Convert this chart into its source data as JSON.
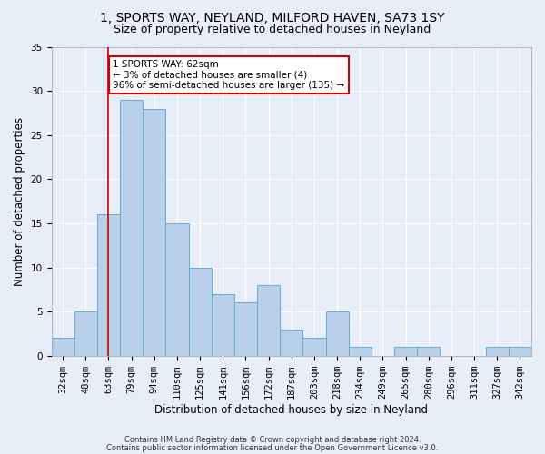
{
  "title_line1": "1, SPORTS WAY, NEYLAND, MILFORD HAVEN, SA73 1SY",
  "title_line2": "Size of property relative to detached houses in Neyland",
  "xlabel": "Distribution of detached houses by size in Neyland",
  "ylabel": "Number of detached properties",
  "categories": [
    "32sqm",
    "48sqm",
    "63sqm",
    "79sqm",
    "94sqm",
    "110sqm",
    "125sqm",
    "141sqm",
    "156sqm",
    "172sqm",
    "187sqm",
    "203sqm",
    "218sqm",
    "234sqm",
    "249sqm",
    "265sqm",
    "280sqm",
    "296sqm",
    "311sqm",
    "327sqm",
    "342sqm"
  ],
  "values": [
    2,
    5,
    16,
    29,
    28,
    15,
    10,
    7,
    6,
    8,
    3,
    2,
    5,
    1,
    0,
    1,
    1,
    0,
    0,
    1,
    1
  ],
  "bar_color": "#b8d0ea",
  "bar_edge_color": "#6aaad4",
  "red_line_index": 2,
  "annotation_text": "1 SPORTS WAY: 62sqm\n← 3% of detached houses are smaller (4)\n96% of semi-detached houses are larger (135) →",
  "annotation_box_color": "#ffffff",
  "annotation_box_edge_color": "#cc0000",
  "red_line_color": "#cc0000",
  "background_color": "#e8eef8",
  "grid_color": "#ffffff",
  "footer_line1": "Contains HM Land Registry data © Crown copyright and database right 2024.",
  "footer_line2": "Contains public sector information licensed under the Open Government Licence v3.0.",
  "ylim": [
    0,
    35
  ],
  "title_fontsize": 10,
  "subtitle_fontsize": 9,
  "tick_fontsize": 7.5,
  "ylabel_fontsize": 8.5,
  "xlabel_fontsize": 8.5,
  "annotation_fontsize": 7.5,
  "footer_fontsize": 6
}
